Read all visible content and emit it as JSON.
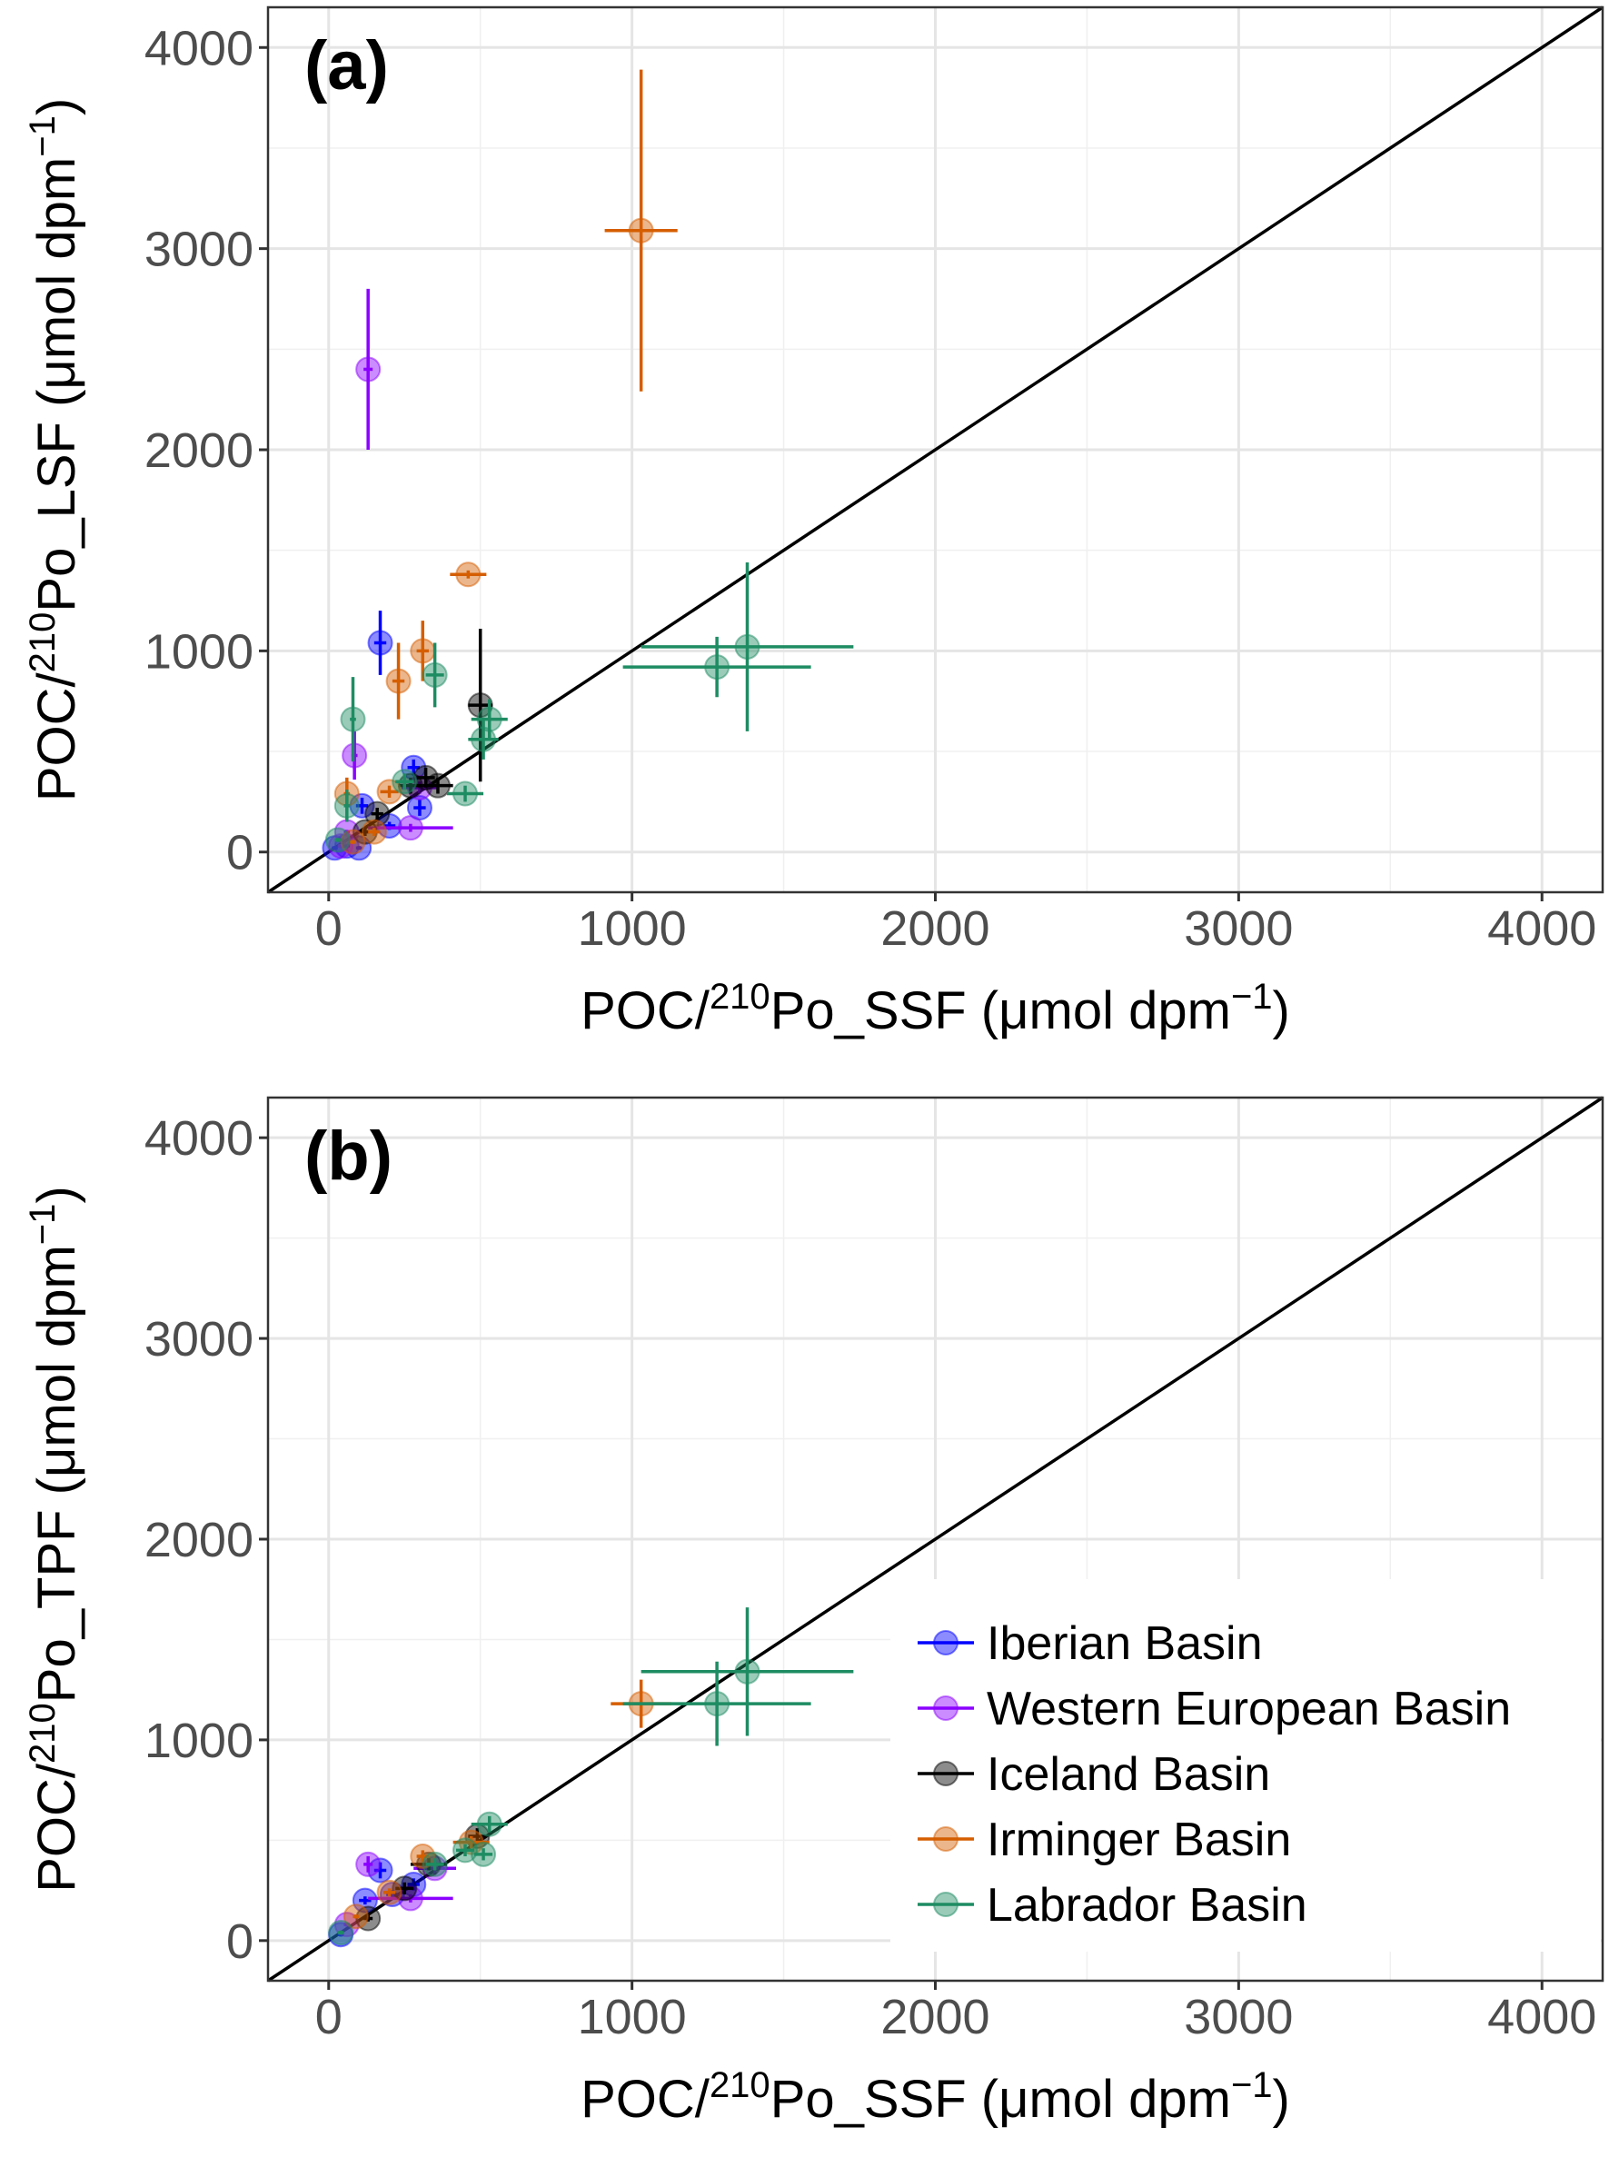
{
  "colors": {
    "Iberian Basin": "#0000FF",
    "Western European Basin": "#8B00FF",
    "Iceland Basin": "#000000",
    "Irminger Basin": "#D55E00",
    "Labrador Basin": "#1E8C63"
  },
  "chart_data": [
    {
      "type": "scatter",
      "panel_label": "(a)",
      "xlabel": {
        "pre": "POC/",
        "sup1": "210",
        "mid": "Po_SSF (μmol dpm",
        "sup2": "−1",
        "post": ")"
      },
      "ylabel": {
        "pre": "POC/",
        "sup1": "210",
        "mid": "Po_LSF (μmol dpm",
        "sup2": "−1",
        "post": ")"
      },
      "xlim": [
        -200,
        4200
      ],
      "ylim": [
        -200,
        4200
      ],
      "xticks": [
        "0",
        "1000",
        "2000",
        "3000",
        "4000"
      ],
      "yticks": [
        "0",
        "1000",
        "2000",
        "3000",
        "4000"
      ],
      "grid": true,
      "reference_line": "1:1",
      "series": [
        {
          "name": "Iberian Basin",
          "points": [
            [
              170,
              1040,
              20,
              160
            ],
            [
              280,
              420,
              20,
              40
            ],
            [
              300,
              220,
              20,
              40
            ],
            [
              110,
              230,
              20,
              40
            ],
            [
              60,
              30,
              10,
              10
            ],
            [
              20,
              20,
              10,
              10
            ],
            [
              200,
              130,
              20,
              20
            ],
            [
              100,
              20,
              10,
              10
            ]
          ]
        },
        {
          "name": "Western European Basin",
          "points": [
            [
              130,
              2400,
              15,
              400
            ],
            [
              85,
              480,
              10,
              120
            ],
            [
              270,
              120,
              140,
              20
            ],
            [
              300,
              320,
              60,
              30
            ],
            [
              60,
              100,
              10,
              10
            ],
            [
              40,
              30,
              10,
              10
            ]
          ]
        },
        {
          "name": "Iceland Basin",
          "points": [
            [
              500,
              730,
              40,
              380
            ],
            [
              320,
              370,
              30,
              50
            ],
            [
              360,
              330,
              50,
              40
            ],
            [
              160,
              190,
              20,
              30
            ],
            [
              120,
              100,
              15,
              20
            ],
            [
              270,
              330,
              40,
              40
            ]
          ]
        },
        {
          "name": "Irminger Basin",
          "points": [
            [
              1030,
              3090,
              120,
              800
            ],
            [
              460,
              1380,
              60,
              20
            ],
            [
              310,
              1000,
              20,
              150
            ],
            [
              230,
              850,
              20,
              190
            ],
            [
              60,
              290,
              10,
              80
            ],
            [
              200,
              300,
              30,
              30
            ],
            [
              150,
              100,
              20,
              20
            ],
            [
              80,
              50,
              10,
              10
            ]
          ]
        },
        {
          "name": "Labrador Basin",
          "points": [
            [
              1380,
              1020,
              350,
              420
            ],
            [
              1280,
              920,
              310,
              150
            ],
            [
              80,
              660,
              10,
              210
            ],
            [
              350,
              880,
              30,
              160
            ],
            [
              530,
              660,
              60,
              100
            ],
            [
              510,
              560,
              50,
              100
            ],
            [
              450,
              290,
              60,
              40
            ],
            [
              60,
              230,
              10,
              80
            ],
            [
              30,
              60,
              10,
              10
            ],
            [
              250,
              350,
              30,
              40
            ]
          ]
        }
      ]
    },
    {
      "type": "scatter",
      "panel_label": "(b)",
      "xlabel": {
        "pre": "POC/",
        "sup1": "210",
        "mid": "Po_SSF (μmol dpm",
        "sup2": "−1",
        "post": ")"
      },
      "ylabel": {
        "pre": "POC/",
        "sup1": "210",
        "mid": "Po_TPF (μmol dpm",
        "sup2": "−1",
        "post": ")"
      },
      "xlim": [
        -200,
        4200
      ],
      "ylim": [
        -200,
        4200
      ],
      "xticks": [
        "0",
        "1000",
        "2000",
        "3000",
        "4000"
      ],
      "yticks": [
        "0",
        "1000",
        "2000",
        "3000",
        "4000"
      ],
      "grid": true,
      "reference_line": "1:1",
      "legend_position": "bottom-right",
      "series": [
        {
          "name": "Iberian Basin",
          "points": [
            [
              170,
              350,
              20,
              40
            ],
            [
              280,
              280,
              20,
              30
            ],
            [
              120,
              200,
              20,
              20
            ],
            [
              40,
              30,
              10,
              10
            ],
            [
              210,
              230,
              20,
              20
            ]
          ]
        },
        {
          "name": "Western European Basin",
          "points": [
            [
              130,
              380,
              15,
              40
            ],
            [
              270,
              210,
              140,
              20
            ],
            [
              350,
              360,
              70,
              30
            ],
            [
              60,
              80,
              10,
              10
            ]
          ]
        },
        {
          "name": "Iceland Basin",
          "points": [
            [
              490,
              520,
              30,
              40
            ],
            [
              330,
              380,
              60,
              30
            ],
            [
              250,
              260,
              30,
              30
            ],
            [
              130,
              110,
              15,
              15
            ]
          ]
        },
        {
          "name": "Irminger Basin",
          "points": [
            [
              1030,
              1180,
              100,
              120
            ],
            [
              310,
              420,
              20,
              30
            ],
            [
              470,
              490,
              60,
              30
            ],
            [
              200,
              240,
              20,
              20
            ],
            [
              90,
              120,
              10,
              10
            ]
          ]
        },
        {
          "name": "Labrador Basin",
          "points": [
            [
              1380,
              1340,
              350,
              320
            ],
            [
              1280,
              1180,
              310,
              210
            ],
            [
              530,
              580,
              60,
              40
            ],
            [
              510,
              430,
              30,
              30
            ],
            [
              450,
              450,
              30,
              30
            ],
            [
              350,
              380,
              30,
              30
            ],
            [
              40,
              40,
              10,
              10
            ]
          ]
        }
      ]
    }
  ],
  "legend": [
    "Iberian Basin",
    "Western European Basin",
    "Iceland Basin",
    "Irminger Basin",
    "Labrador Basin"
  ]
}
